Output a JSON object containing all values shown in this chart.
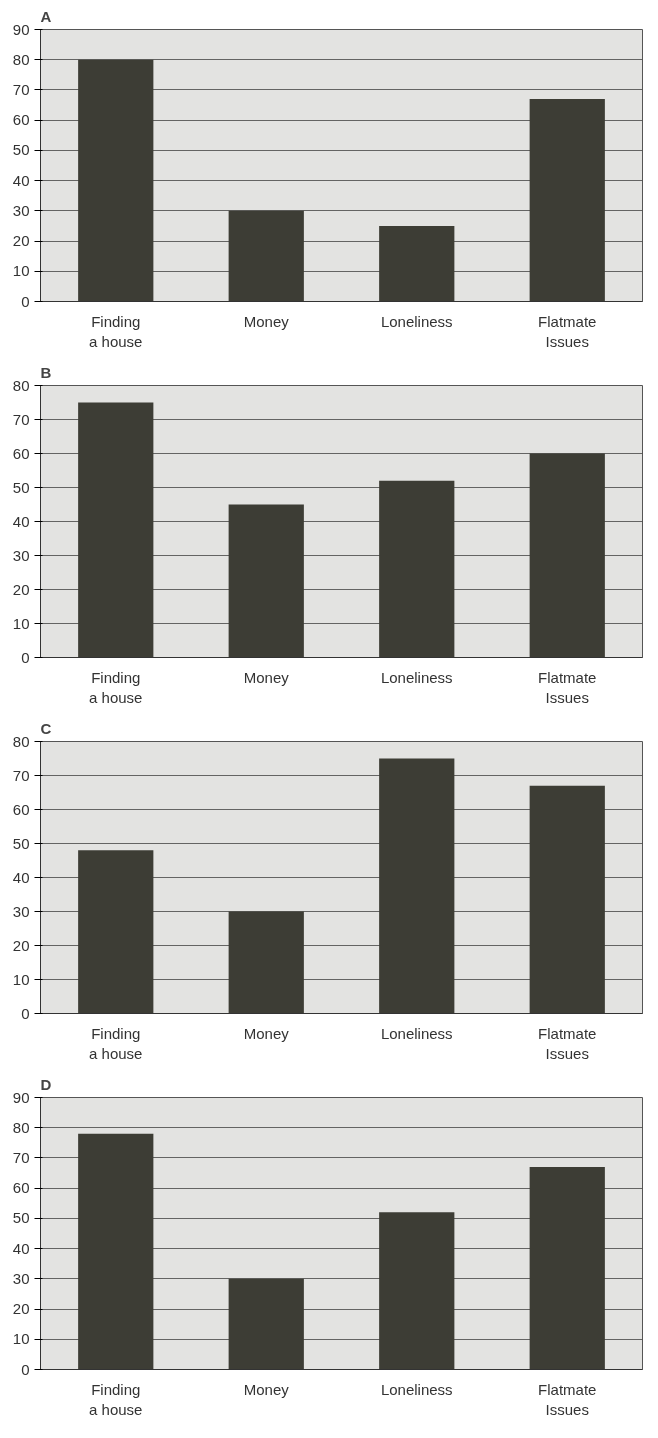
{
  "chart_data": [
    {
      "type": "bar",
      "title": "A",
      "categories": [
        "Finding\na house",
        "Money",
        "Loneliness",
        "Flatmate\nIssues"
      ],
      "values": [
        80,
        30,
        25,
        67
      ],
      "color": "#3d3d35",
      "ylim": [
        0,
        90
      ],
      "yticks": [
        0,
        10,
        20,
        30,
        40,
        50,
        60,
        70,
        80,
        90
      ],
      "grid": "y"
    },
    {
      "type": "bar",
      "title": "B",
      "categories": [
        "Finding\na house",
        "Money",
        "Loneliness",
        "Flatmate\nIssues"
      ],
      "values": [
        75,
        45,
        52,
        60
      ],
      "color": "#3d3d35",
      "ylim": [
        0,
        80
      ],
      "yticks": [
        0,
        10,
        20,
        30,
        40,
        50,
        60,
        70,
        80
      ],
      "grid": "y"
    },
    {
      "type": "bar",
      "title": "C",
      "categories": [
        "Finding\na house",
        "Money",
        "Loneliness",
        "Flatmate\nIssues"
      ],
      "values": [
        48,
        30,
        75,
        67
      ],
      "color": "#3d3d35",
      "ylim": [
        0,
        80
      ],
      "yticks": [
        0,
        10,
        20,
        30,
        40,
        50,
        60,
        70,
        80
      ],
      "grid": "y"
    },
    {
      "type": "bar",
      "title": "D",
      "categories": [
        "Finding\na house",
        "Money",
        "Loneliness",
        "Flatmate\nIssues"
      ],
      "values": [
        78,
        30,
        52,
        67
      ],
      "color": "#3d3d35",
      "ylim": [
        0,
        90
      ],
      "yticks": [
        0,
        10,
        20,
        30,
        40,
        50,
        60,
        70,
        80,
        90
      ],
      "grid": "y"
    }
  ]
}
